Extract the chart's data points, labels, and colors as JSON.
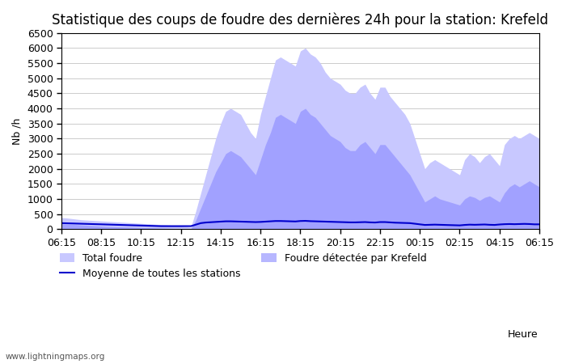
{
  "title": "Statistique des coups de foudre des dernières 24h pour la station: Krefeld",
  "ylabel": "Nb /h",
  "xlabel_right": "Heure",
  "watermark": "www.lightningmaps.org",
  "ylim": [
    0,
    6500
  ],
  "yticks": [
    0,
    500,
    1000,
    1500,
    2000,
    2500,
    3000,
    3500,
    4000,
    4500,
    5000,
    5500,
    6000,
    6500
  ],
  "x_labels": [
    "06:15",
    "08:15",
    "10:15",
    "12:15",
    "14:15",
    "16:15",
    "18:15",
    "20:15",
    "22:15",
    "00:15",
    "02:15",
    "04:15",
    "06:15"
  ],
  "bg_color": "#ffffff",
  "plot_bg_color": "#ffffff",
  "grid_color": "#cccccc",
  "total_foudre_color": "#c8c8ff",
  "total_foudre_edge": "#c8c8ff",
  "krefeld_color": "#8888ff",
  "krefeld_edge": "#8888ff",
  "moyenne_color": "#0000cc",
  "legend_labels": [
    "Total foudre",
    "Moyenne de toutes les stations",
    "Foudre détectée par Krefeld"
  ],
  "title_fontsize": 12,
  "tick_fontsize": 9,
  "label_fontsize": 9,
  "n_points": 97,
  "total_foudre": [
    380,
    370,
    350,
    330,
    310,
    300,
    290,
    280,
    270,
    260,
    250,
    240,
    230,
    220,
    210,
    200,
    190,
    180,
    170,
    160,
    150,
    140,
    130,
    120,
    100,
    80,
    60,
    600,
    1200,
    1800,
    2400,
    3000,
    3500,
    3900,
    4000,
    3900,
    3800,
    3500,
    3200,
    3000,
    3800,
    4400,
    5000,
    5600,
    5700,
    5600,
    5500,
    5400,
    5900,
    6000,
    5800,
    5700,
    5500,
    5200,
    5000,
    4900,
    4800,
    4600,
    4500,
    4500,
    4700,
    4800,
    4500,
    4300,
    4700,
    4700,
    4400,
    4200,
    4000,
    3800,
    3500,
    3000,
    2500,
    2000,
    2200,
    2300,
    2200,
    2100,
    2000,
    1900,
    1800,
    2300,
    2500,
    2400,
    2200,
    2400,
    2500,
    2300,
    2100,
    2800,
    3000,
    3100,
    3000,
    3100,
    3200,
    3100,
    3000
  ],
  "krefeld_foudre": [
    180,
    170,
    160,
    150,
    140,
    130,
    120,
    110,
    100,
    90,
    85,
    80,
    75,
    70,
    65,
    60,
    55,
    50,
    45,
    40,
    35,
    30,
    25,
    20,
    15,
    10,
    5,
    300,
    700,
    1100,
    1500,
    1900,
    2200,
    2500,
    2600,
    2500,
    2400,
    2200,
    2000,
    1800,
    2300,
    2800,
    3200,
    3700,
    3800,
    3700,
    3600,
    3500,
    3900,
    4000,
    3800,
    3700,
    3500,
    3300,
    3100,
    3000,
    2900,
    2700,
    2600,
    2600,
    2800,
    2900,
    2700,
    2500,
    2800,
    2800,
    2600,
    2400,
    2200,
    2000,
    1800,
    1500,
    1200,
    900,
    1000,
    1100,
    1000,
    950,
    900,
    850,
    800,
    1000,
    1100,
    1050,
    950,
    1050,
    1100,
    1000,
    900,
    1200,
    1400,
    1500,
    1400,
    1500,
    1600,
    1500,
    1400
  ],
  "moyenne": [
    200,
    195,
    190,
    185,
    180,
    175,
    170,
    165,
    160,
    155,
    150,
    145,
    140,
    135,
    130,
    125,
    120,
    115,
    110,
    105,
    100,
    100,
    100,
    100,
    100,
    100,
    100,
    150,
    200,
    220,
    230,
    240,
    250,
    260,
    260,
    255,
    250,
    245,
    240,
    235,
    240,
    250,
    260,
    270,
    270,
    265,
    260,
    255,
    270,
    275,
    265,
    260,
    255,
    250,
    245,
    240,
    235,
    230,
    225,
    225,
    230,
    235,
    225,
    220,
    235,
    235,
    225,
    215,
    210,
    205,
    200,
    180,
    160,
    140,
    145,
    150,
    145,
    140,
    135,
    130,
    125,
    140,
    150,
    145,
    150,
    155,
    145,
    140,
    155,
    165,
    170,
    165,
    170,
    175,
    170,
    160,
    160
  ]
}
